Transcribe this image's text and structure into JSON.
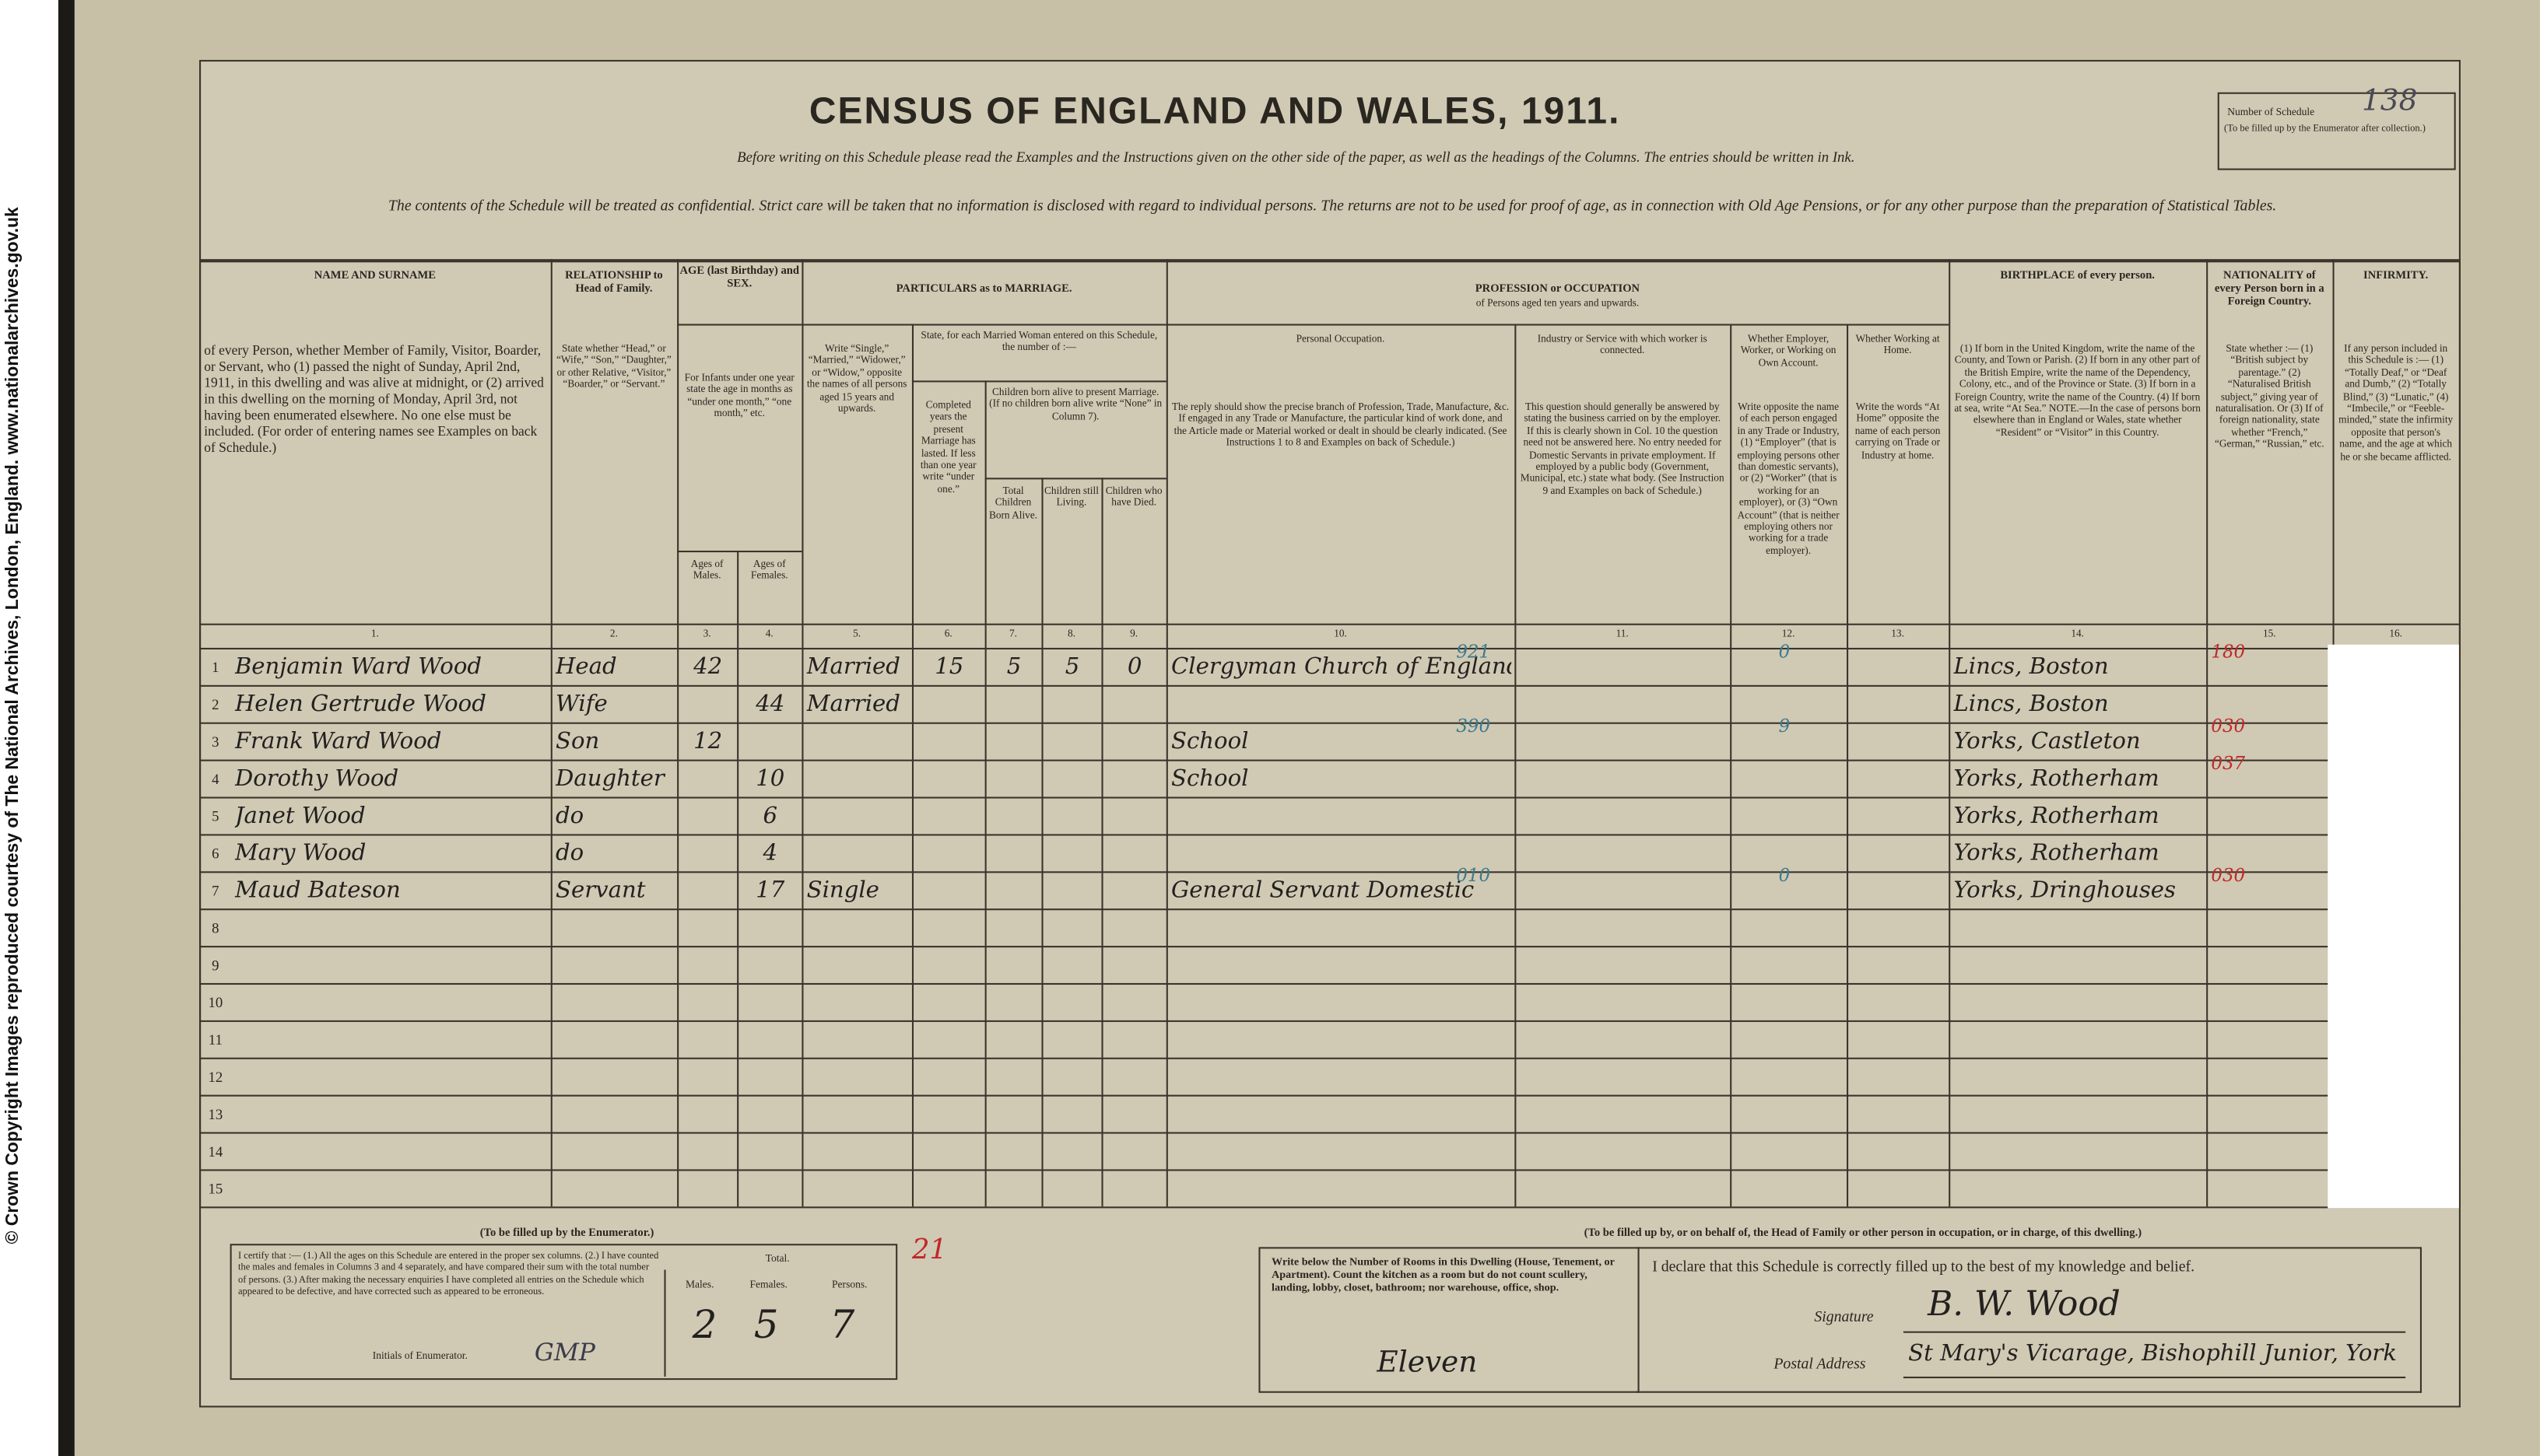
{
  "side_credit": "© Crown Copyright Images reproduced courtesy of The National Archives, London, England. www.nationalarchives.gov.uk",
  "header": {
    "title": "CENSUS OF ENGLAND AND WALES, 1911.",
    "instruction": "Before writing on this Schedule please read the Examples and the Instructions given on the other side of the paper, as well as the headings of the Columns. The entries should be written in Ink.",
    "confidential": "The contents of the Schedule will be treated as confidential. Strict care will be taken that no information is disclosed with regard to individual persons. The returns are not to be used for proof of age, as in connection with Old Age Pensions, or for any other purpose than the preparation of Statistical Tables."
  },
  "schedule_number": {
    "label": "Number of Schedule",
    "note": "(To be filled up by the Enumerator after collection.)",
    "value": "138"
  },
  "groups": [
    {
      "heading": "AGE (last Birthday) and SEX.",
      "text": "For Infants under one year state the age in months as “under one month,” “one month,” etc."
    },
    {
      "heading": "PARTICULARS as to MARRIAGE.",
      "subheading": "State, for each Married Woman entered on this Schedule, the number of :—",
      "subsubheading": "Children born alive to present Marriage. (If no children born alive write “None” in Column 7)."
    },
    {
      "heading": "PROFESSION or OCCUPATION",
      "subheading": "of Persons aged ten years and upwards."
    }
  ],
  "columns": [
    {
      "number": "1.",
      "heading": "NAME AND SURNAME",
      "text": "of every Person, whether Member of Family, Visitor, Boarder, or Servant, who (1) passed the night of Sunday, April 2nd, 1911, in this dwelling and was alive at midnight, or (2) arrived in this dwelling on the morning of Monday, April 3rd, not having been enumerated elsewhere. No one else must be included. (For order of entering names see Examples on back of Schedule.)"
    },
    {
      "number": "2.",
      "heading": "RELATIONSHIP to Head of Family.",
      "text": "State whether “Head,” or “Wife,” “Son,” “Daughter,” or other Relative, “Visitor,” “Boarder,” or “Servant.”"
    },
    {
      "number": "3.",
      "heading": "Ages of Males."
    },
    {
      "number": "4.",
      "heading": "Ages of Females."
    },
    {
      "number": "5.",
      "text": "Write “Single,” “Married,” “Widower,” or “Widow,” opposite the names of all persons aged 15 years and upwards."
    },
    {
      "number": "6.",
      "text": "Completed years the present Marriage has lasted. If less than one year write “under one.”"
    },
    {
      "number": "7.",
      "heading": "Total Children Born Alive."
    },
    {
      "number": "8.",
      "heading": "Children still Living."
    },
    {
      "number": "9.",
      "heading": "Children who have Died."
    },
    {
      "number": "10.",
      "heading": "Personal Occupation.",
      "text": "The reply should show the precise branch of Profession, Trade, Manufacture, &c. If engaged in any Trade or Manufacture, the particular kind of work done, and the Article made or Material worked or dealt in should be clearly indicated. (See Instructions 1 to 8 and Examples on back of Schedule.)"
    },
    {
      "number": "11.",
      "heading": "Industry or Service with which worker is connected.",
      "text": "This question should generally be answered by stating the business carried on by the employer. If this is clearly shown in Col. 10 the question need not be answered here. No entry needed for Domestic Servants in private employment. If employed by a public body (Government, Municipal, etc.) state what body. (See Instruction 9 and Examples on back of Schedule.)"
    },
    {
      "number": "12.",
      "heading": "Whether Employer, Worker, or Working on Own Account.",
      "text": "Write opposite the name of each person engaged in any Trade or Industry, (1) “Employer” (that is employing persons other than domestic servants), or (2) “Worker” (that is working for an employer), or (3) “Own Account” (that is neither employing others nor working for a trade employer)."
    },
    {
      "number": "13.",
      "heading": "Whether Working at Home.",
      "text": "Write the words “At Home” opposite the name of each person carrying on Trade or Industry at home."
    },
    {
      "number": "14.",
      "heading": "BIRTHPLACE of every person.",
      "text": "(1) If born in the United Kingdom, write the name of the County, and Town or Parish. (2) If born in any other part of the British Empire, write the name of the Dependency, Colony, etc., and of the Province or State. (3) If born in a Foreign Country, write the name of the Country. (4) If born at sea, write “At Sea.” NOTE.—In the case of persons born elsewhere than in England or Wales, state whether “Resident” or “Visitor” in this Country."
    },
    {
      "number": "15.",
      "heading": "NATIONALITY of every Person born in a Foreign Country.",
      "text": "State whether :— (1) “British subject by parentage.” (2) “Naturalised British subject,” giving year of naturalisation. Or (3) If of foreign nationality, state whether “French,” “German,” “Russian,” etc."
    },
    {
      "number": "16.",
      "heading": "INFIRMITY.",
      "text": "If any person included in this Schedule is :— (1) “Totally Deaf,” or “Deaf and Dumb,” (2) “Totally Blind,” (3) “Lunatic,” (4) “Imbecile,” or “Feeble-minded,” state the infirmity opposite that person's name, and the age at which he or she became afflicted."
    }
  ],
  "rows": [
    {
      "number": "1",
      "cells": {
        "1": "Benjamin Ward Wood",
        "2": "Head",
        "3": "42",
        "5": "Married",
        "6": "15",
        "7": "5",
        "8": "5",
        "9": "0",
        "10": "Clergyman Church of England",
        "14": "Lincs, Boston"
      },
      "codes": {
        "10": "921",
        "12": "0",
        "15": "180"
      }
    },
    {
      "number": "2",
      "cells": {
        "1": "Helen Gertrude Wood",
        "2": "Wife",
        "4": "44",
        "5": "Married",
        "14": "Lincs, Boston"
      }
    },
    {
      "number": "3",
      "cells": {
        "1": "Frank Ward Wood",
        "2": "Son",
        "3": "12",
        "10": "School",
        "14": "Yorks, Castleton"
      },
      "codes": {
        "10": "390",
        "12": "9",
        "15": "030"
      }
    },
    {
      "number": "4",
      "cells": {
        "1": "Dorothy Wood",
        "2": "Daughter",
        "4": "10",
        "10": "School",
        "14": "Yorks, Rotherham"
      },
      "codes": {
        "15": "037"
      }
    },
    {
      "number": "5",
      "cells": {
        "1": "Janet Wood",
        "2": "do",
        "4": "6",
        "14": "Yorks, Rotherham"
      }
    },
    {
      "number": "6",
      "cells": {
        "1": "Mary Wood",
        "2": "do",
        "4": "4",
        "14": "Yorks, Rotherham"
      }
    },
    {
      "number": "7",
      "cells": {
        "1": "Maud Bateson",
        "2": "Servant",
        "4": "17",
        "5": "Single",
        "10": "General Servant Domestic",
        "14": "Yorks, Dringhouses"
      },
      "codes": {
        "10": "010",
        "12": "0",
        "15": "030"
      }
    },
    {
      "number": "8"
    },
    {
      "number": "9"
    },
    {
      "number": "10"
    },
    {
      "number": "11"
    },
    {
      "number": "12"
    },
    {
      "number": "13"
    },
    {
      "number": "14"
    },
    {
      "number": "15"
    }
  ],
  "enumerator": {
    "title": "(To be filled up by the Enumerator.)",
    "certificate": "I certify that :— (1.) All the ages on this Schedule are entered in the proper sex columns. (2.) I have counted the males and females in Columns 3 and 4 separately, and have compared their sum with the total number of persons. (3.) After making the necessary enquiries I have completed all entries on the Schedule which appeared to be defective, and have corrected such as appeared to be erroneous.",
    "initials_label": "Initials of Enumerator.",
    "initials": "GMP",
    "total_label": "Total.",
    "males_label": "Males.",
    "females_label": "Females.",
    "persons_label": "Persons.",
    "males": "2",
    "females": "5",
    "persons": "7",
    "mark": "21"
  },
  "occupier": {
    "title": "(To be filled up by, or on behalf of, the Head of Family or other person in occupation, or in charge, of this dwelling.)",
    "rooms_text": "Write below the Number of Rooms in this Dwelling (House, Tenement, or Apartment). Count the kitchen as a room but do not count scullery, landing, lobby, closet, bathroom; nor warehouse, office, shop.",
    "rooms": "Eleven",
    "declaration": "I declare that this Schedule is correctly filled up to the best of my knowledge and belief.",
    "signature_label": "Signature",
    "signature": "B. W. Wood",
    "address_label": "Postal Address",
    "address": "St Mary's Vicarage, Bishophill Junior, York"
  }
}
